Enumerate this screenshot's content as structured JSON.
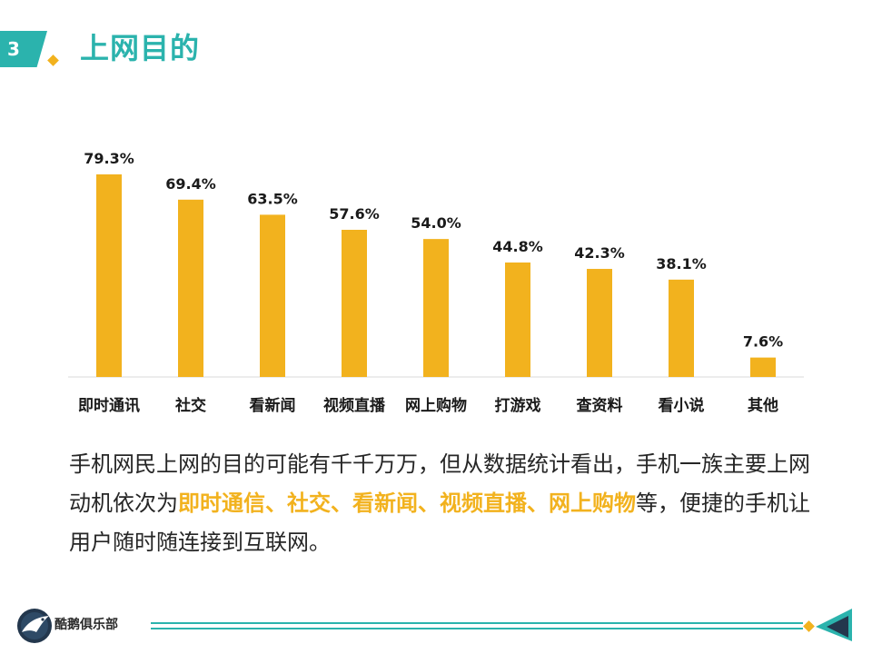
{
  "slide": {
    "number": "3",
    "title": "上网目的"
  },
  "colors": {
    "accent": "#2bb3ad",
    "bar": "#f2b21e",
    "highlight": "#f2b21e",
    "text": "#262626",
    "axis": "#d9d9d9"
  },
  "chart_data": {
    "type": "bar",
    "categories": [
      "即时通讯",
      "社交",
      "看新闻",
      "视频直播",
      "网上购物",
      "打游戏",
      "查资料",
      "看小说",
      "其他"
    ],
    "values": [
      79.3,
      69.4,
      63.5,
      57.6,
      54.0,
      44.8,
      42.3,
      38.1,
      7.6
    ],
    "value_labels": [
      "79.3%",
      "69.4%",
      "63.5%",
      "57.6%",
      "54.0%",
      "44.8%",
      "42.3%",
      "38.1%",
      "7.6%"
    ],
    "ylim": [
      0,
      80
    ],
    "grid": false,
    "legend": "none",
    "value_axis_visible": false
  },
  "summary": {
    "part1": "手机网民上网的目的可能有千千万万，但从数据统计看出，手机一族主要上网动机依次为",
    "highlight": "即时通信、社交、看新闻、视频直播、网上购物",
    "part2": "等，便捷的手机让用户随时随连接到互联网。"
  },
  "footer": {
    "brand": "酷鹅俱乐部",
    "logo_icon": "penguin-icon"
  }
}
